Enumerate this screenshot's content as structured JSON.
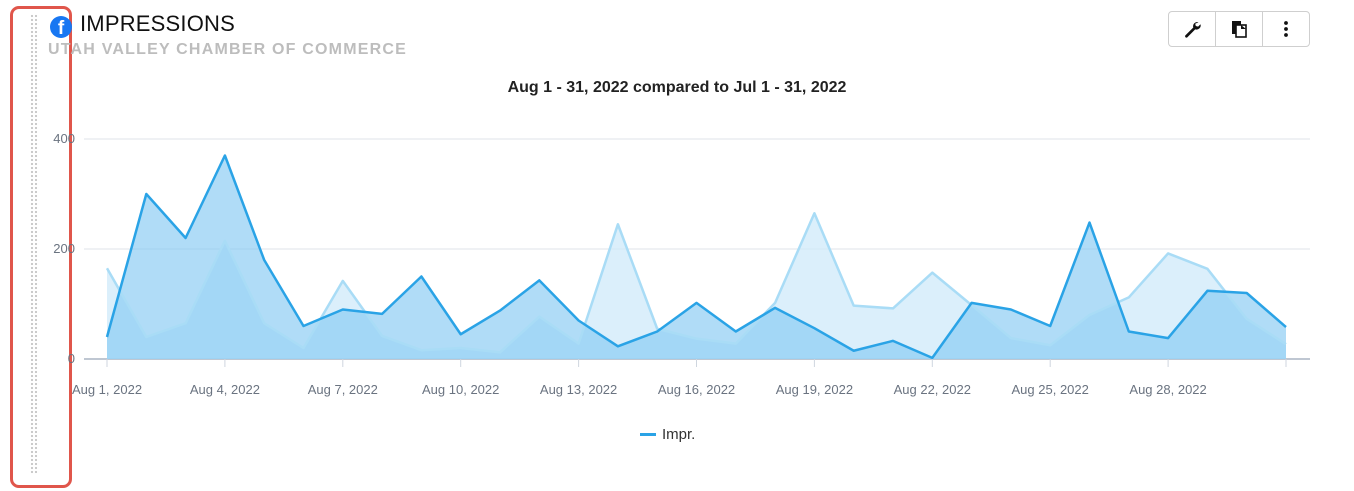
{
  "widget": {
    "title": "IMPRESSIONS",
    "subtitle": "UTAH VALLEY CHAMBER OF COMMERCE",
    "source_icon": "facebook-icon",
    "toolbar": [
      {
        "name": "wrench-icon",
        "label": "Settings"
      },
      {
        "name": "copy-icon",
        "label": "Duplicate"
      },
      {
        "name": "more-vertical-icon",
        "label": "More"
      }
    ]
  },
  "colors": {
    "current_line": "#2aa3e6",
    "current_fill": "#86c9f3",
    "previous_line": "#a9dcf6",
    "previous_fill": "#cfe9f9",
    "highlight": "#e0564b"
  },
  "chart_data": {
    "type": "area",
    "title": "Aug 1 - 31, 2022 compared to Jul 1 - 31, 2022",
    "x": [
      "Aug 1, 2022",
      "Aug 2, 2022",
      "Aug 3, 2022",
      "Aug 4, 2022",
      "Aug 5, 2022",
      "Aug 6, 2022",
      "Aug 7, 2022",
      "Aug 8, 2022",
      "Aug 9, 2022",
      "Aug 10, 2022",
      "Aug 11, 2022",
      "Aug 12, 2022",
      "Aug 13, 2022",
      "Aug 14, 2022",
      "Aug 15, 2022",
      "Aug 16, 2022",
      "Aug 17, 2022",
      "Aug 18, 2022",
      "Aug 19, 2022",
      "Aug 20, 2022",
      "Aug 21, 2022",
      "Aug 22, 2022",
      "Aug 23, 2022",
      "Aug 24, 2022",
      "Aug 25, 2022",
      "Aug 26, 2022",
      "Aug 27, 2022",
      "Aug 28, 2022",
      "Aug 29, 2022",
      "Aug 30, 2022",
      "Aug 31, 2022"
    ],
    "x_tick_labels": [
      "Aug 1, 2022",
      "Aug 4, 2022",
      "Aug 7, 2022",
      "Aug 10, 2022",
      "Aug 13, 2022",
      "Aug 16, 2022",
      "Aug 19, 2022",
      "Aug 22, 2022",
      "Aug 25, 2022",
      "Aug 28, 2022"
    ],
    "x_tick_every": 3,
    "y_ticks": [
      0,
      200,
      400
    ],
    "ylim": [
      0,
      400
    ],
    "grid": true,
    "legend_position": "bottom-center",
    "series": [
      {
        "name": "Impr.",
        "role": "current",
        "values": [
          40,
          300,
          220,
          370,
          180,
          60,
          90,
          82,
          150,
          45,
          88,
          143,
          70,
          23,
          50,
          102,
          50,
          93,
          56,
          15,
          33,
          2,
          102,
          90,
          60,
          248,
          50,
          38,
          124,
          120,
          58
        ]
      },
      {
        "role": "previous",
        "values": [
          165,
          40,
          65,
          215,
          65,
          20,
          142,
          42,
          16,
          20,
          12,
          77,
          28,
          245,
          55,
          37,
          28,
          102,
          265,
          97,
          92,
          157,
          98,
          38,
          25,
          80,
          112,
          192,
          164,
          73,
          27
        ]
      }
    ]
  }
}
